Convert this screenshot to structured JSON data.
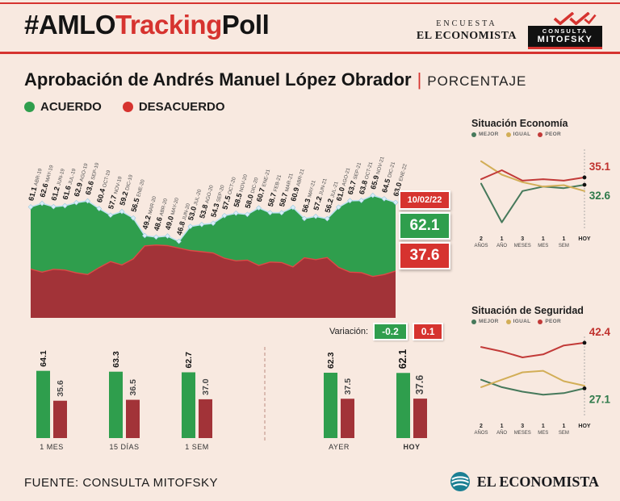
{
  "colors": {
    "background": "#f8e9e0",
    "accent_red": "#d6332f",
    "green": "#2f9e4d",
    "brick_red": "#a23338",
    "light_blue_edge": "#bfe2f2",
    "teal_logo": "#1b7f93"
  },
  "header": {
    "hashtag": {
      "part1": "#AMLO",
      "part2": "Tracking",
      "part3": "Poll"
    },
    "masthead": {
      "top": "ENCUESTA",
      "name": "EL ECONOMISTA"
    },
    "mitofsky": {
      "line1": "CONSULTA",
      "line2": "MITOFSKY"
    }
  },
  "title": {
    "main": "Aprobación de Andrés Manuel López Obrador",
    "separator": "|",
    "unit": "PORCENTAJE"
  },
  "legend": {
    "agree": "ACUERDO",
    "disagree": "DESACUERDO"
  },
  "today": {
    "date": "10/02/22",
    "agree": "62.1",
    "disagree": "37.6"
  },
  "variation": {
    "label": "Variación:",
    "agree": "-0.2",
    "disagree": "0.1"
  },
  "footer": {
    "source": "FUENTE: CONSULTA MITOFSKY",
    "logo_text": "EL ECONOMISTA"
  },
  "chart_data": [
    {
      "id": "approval-timeline",
      "type": "area",
      "title": "Aprobación de Andrés Manuel López Obrador",
      "ylabel": "%",
      "ylim": [
        0,
        70
      ],
      "categories": [
        "ABR-19",
        "MAY-19",
        "JUN-19",
        "JUL-19",
        "AGO-19",
        "SEP-19",
        "OCT-19",
        "NOV-19",
        "DIC-19",
        "ENE-20",
        "MAR-20",
        "ABR-20",
        "MAY-20",
        "JUN-20",
        "JUL-20",
        "AGO-20",
        "SEP-20",
        "OCT-20",
        "NOV-20",
        "DIC-20",
        "ENE-21",
        "FEB-21",
        "MAR-21",
        "ABR-21",
        "MAY-21",
        "JUN-21",
        "JUL-21",
        "AGO-21",
        "SEP-21",
        "OCT-21",
        "NOV-21",
        "DIC-21",
        "ENE-22"
      ],
      "series": [
        {
          "name": "ACUERDO",
          "color": "#2f9e4d",
          "values": [
            61.1,
            62.6,
            61.2,
            61.6,
            62.9,
            63.6,
            60.4,
            57.7,
            59.2,
            56.5,
            49.2,
            48.6,
            49.0,
            46.8,
            53.0,
            53.8,
            54.3,
            57.5,
            58.5,
            58.0,
            60.7,
            58.7,
            58.7,
            60.9,
            56.3,
            57.2,
            56.2,
            61.0,
            63.7,
            63.8,
            65.9,
            64.5,
            63.0
          ]
        },
        {
          "name": "DESACUERDO",
          "color": "#a23338",
          "estimated": true,
          "values": [
            35.3,
            34.0,
            35.2,
            34.9,
            33.7,
            33.0,
            35.9,
            38.4,
            37.0,
            39.5,
            44.9,
            45.3,
            45.0,
            44.0,
            43.0,
            42.5,
            42.0,
            39.8,
            38.7,
            39.0,
            36.8,
            38.2,
            38.0,
            36.2,
            40.0,
            39.2,
            40.1,
            36.0,
            34.0,
            33.8,
            32.2,
            33.0,
            34.5
          ]
        }
      ]
    },
    {
      "id": "recent-bars",
      "type": "bar",
      "categories": [
        "1 MES",
        "15 DÍAS",
        "1 SEM",
        "AYER",
        "HOY"
      ],
      "series": [
        {
          "name": "ACUERDO",
          "color": "#2f9e4d",
          "values": [
            64.1,
            63.3,
            62.7,
            62.3,
            62.1
          ]
        },
        {
          "name": "DESACUERDO",
          "color": "#a23338",
          "values": [
            35.6,
            36.5,
            37.0,
            37.5,
            37.6
          ]
        }
      ],
      "divider_after": "1 SEM"
    },
    {
      "id": "situacion-economia",
      "type": "line",
      "title": "Situación Economía",
      "categories": [
        "2 AÑOS",
        "1 AÑO",
        "3 MESES",
        "1 MES",
        "1 SEM",
        "HOY"
      ],
      "estimated_intermediate": true,
      "series": [
        {
          "name": "MEJOR",
          "color": "#46795b",
          "values": [
            33.0,
            20.0,
            30.5,
            32.0,
            31.5,
            32.6
          ]
        },
        {
          "name": "IGUAL",
          "color": "#d2ae57",
          "values": [
            40.5,
            36.0,
            33.5,
            32.0,
            32.5,
            30.5
          ]
        },
        {
          "name": "PEOR",
          "color": "#c23a38",
          "values": [
            34.5,
            37.5,
            34.0,
            34.5,
            34.0,
            35.1
          ]
        }
      ],
      "end_labels": {
        "peor": "35.1",
        "mejor": "32.6"
      }
    },
    {
      "id": "situacion-seguridad",
      "type": "line",
      "title": "Situación de Seguridad",
      "categories": [
        "2 AÑOS",
        "1 AÑO",
        "3 MESES",
        "1 MES",
        "1 SEM",
        "HOY"
      ],
      "estimated_intermediate": true,
      "series": [
        {
          "name": "MEJOR",
          "color": "#46795b",
          "values": [
            30.0,
            27.5,
            26.0,
            25.0,
            25.5,
            27.1
          ]
        },
        {
          "name": "IGUAL",
          "color": "#d2ae57",
          "values": [
            27.5,
            30.0,
            32.5,
            33.0,
            29.5,
            28.0
          ]
        },
        {
          "name": "PEOR",
          "color": "#c23a38",
          "values": [
            41.0,
            39.5,
            37.5,
            38.5,
            41.5,
            42.4
          ]
        }
      ],
      "end_labels": {
        "peor": "42.4",
        "mejor": "27.1"
      }
    }
  ]
}
